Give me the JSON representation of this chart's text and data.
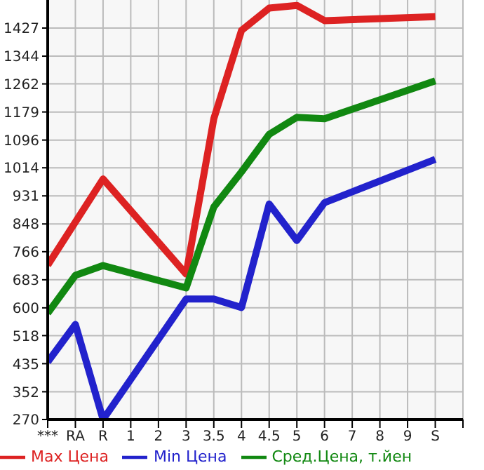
{
  "chart_data": {
    "type": "line",
    "categories": [
      "***",
      "RA",
      "R",
      "1",
      "2",
      "3",
      "3.5",
      "4",
      "4.5",
      "5",
      "6",
      "7",
      "8",
      "9",
      "S"
    ],
    "series": [
      {
        "name": "Max Цена",
        "color": "#dd2222",
        "values": [
          726,
          null,
          981,
          null,
          null,
          700,
          1159,
          1420,
          1486,
          1494,
          1449,
          null,
          null,
          null,
          1461
        ]
      },
      {
        "name": "Min Цена",
        "color": "#2222cc",
        "values": [
          440,
          551,
          270,
          null,
          null,
          626,
          626,
          601,
          907,
          799,
          911,
          null,
          null,
          null,
          1039
        ]
      },
      {
        "name": "Сред.Цена, т.йен",
        "color": "#118811",
        "values": [
          584,
          696,
          725,
          null,
          null,
          659,
          898,
          1002,
          1113,
          1163,
          1159,
          null,
          null,
          null,
          1271
        ]
      }
    ],
    "ylim": [
      270,
      1510
    ],
    "yticks": [
      270,
      352,
      435,
      518,
      600,
      683,
      766,
      848,
      931,
      1014,
      1096,
      1179,
      1262,
      1344,
      1427
    ],
    "grid": true,
    "legend": "bottom",
    "marker": "none",
    "line_style": "solid"
  }
}
